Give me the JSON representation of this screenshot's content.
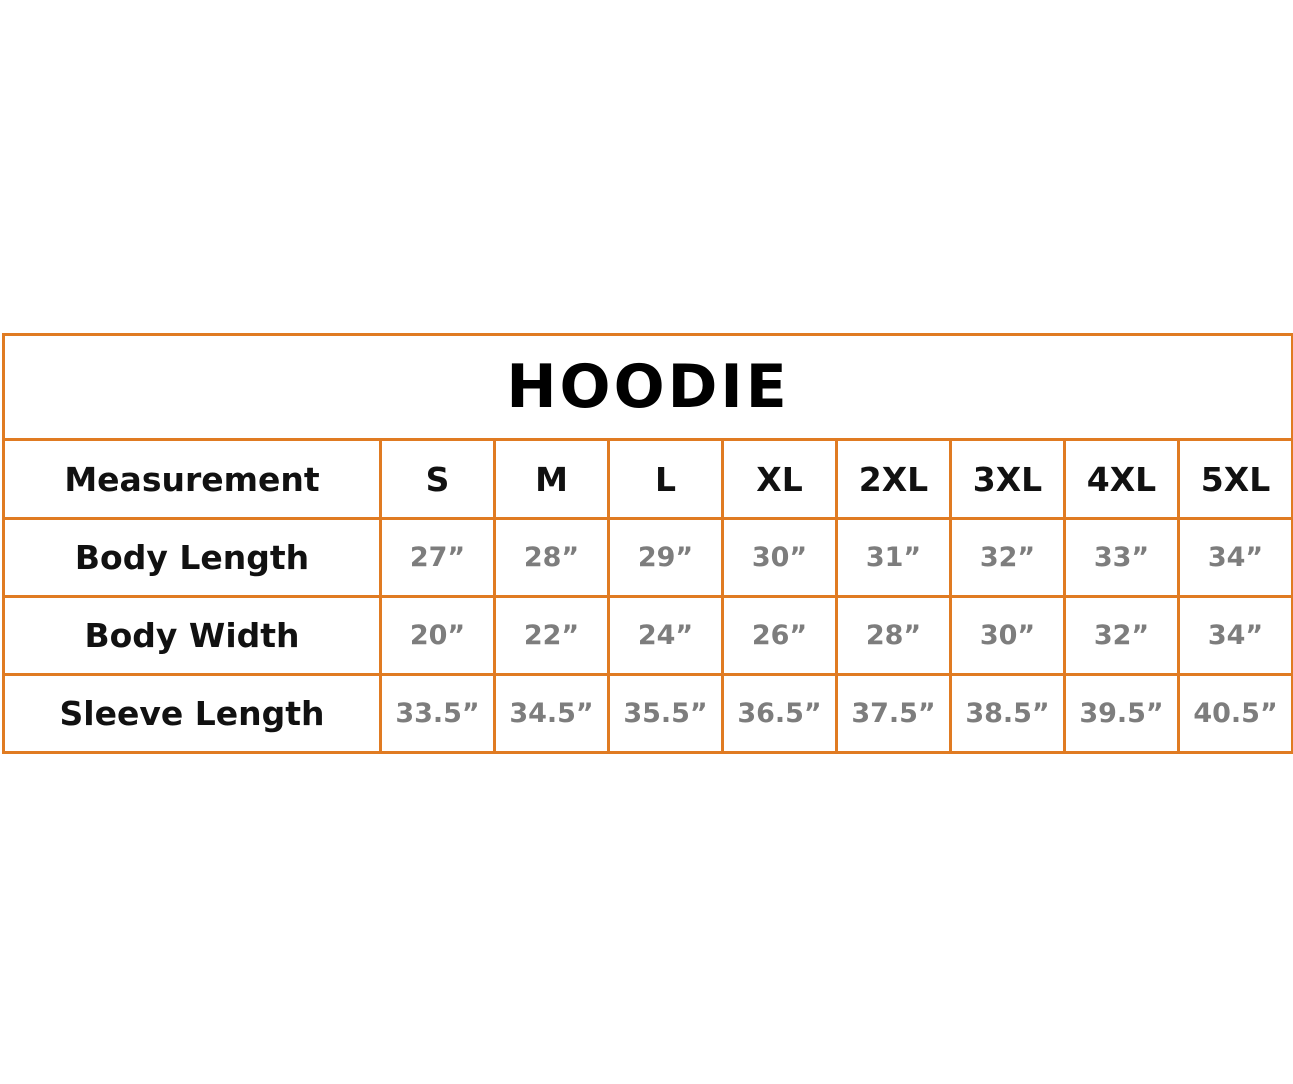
{
  "table": {
    "title": "HOODIE",
    "header": [
      "Measurement",
      "S",
      "M",
      "L",
      "XL",
      "2XL",
      "3XL",
      "4XL",
      "5XL"
    ],
    "rows": [
      [
        "Body Length",
        "27”",
        "28”",
        "29”",
        "30”",
        "31”",
        "32”",
        "33”",
        "34”"
      ],
      [
        "Body Width",
        "20”",
        "22”",
        "24”",
        "26”",
        "28”",
        "30”",
        "32”",
        "34”"
      ],
      [
        "Sleeve Length",
        "33.5”",
        "34.5”",
        "35.5”",
        "36.5”",
        "37.5”",
        "38.5”",
        "39.5”",
        "40.5”"
      ]
    ]
  }
}
